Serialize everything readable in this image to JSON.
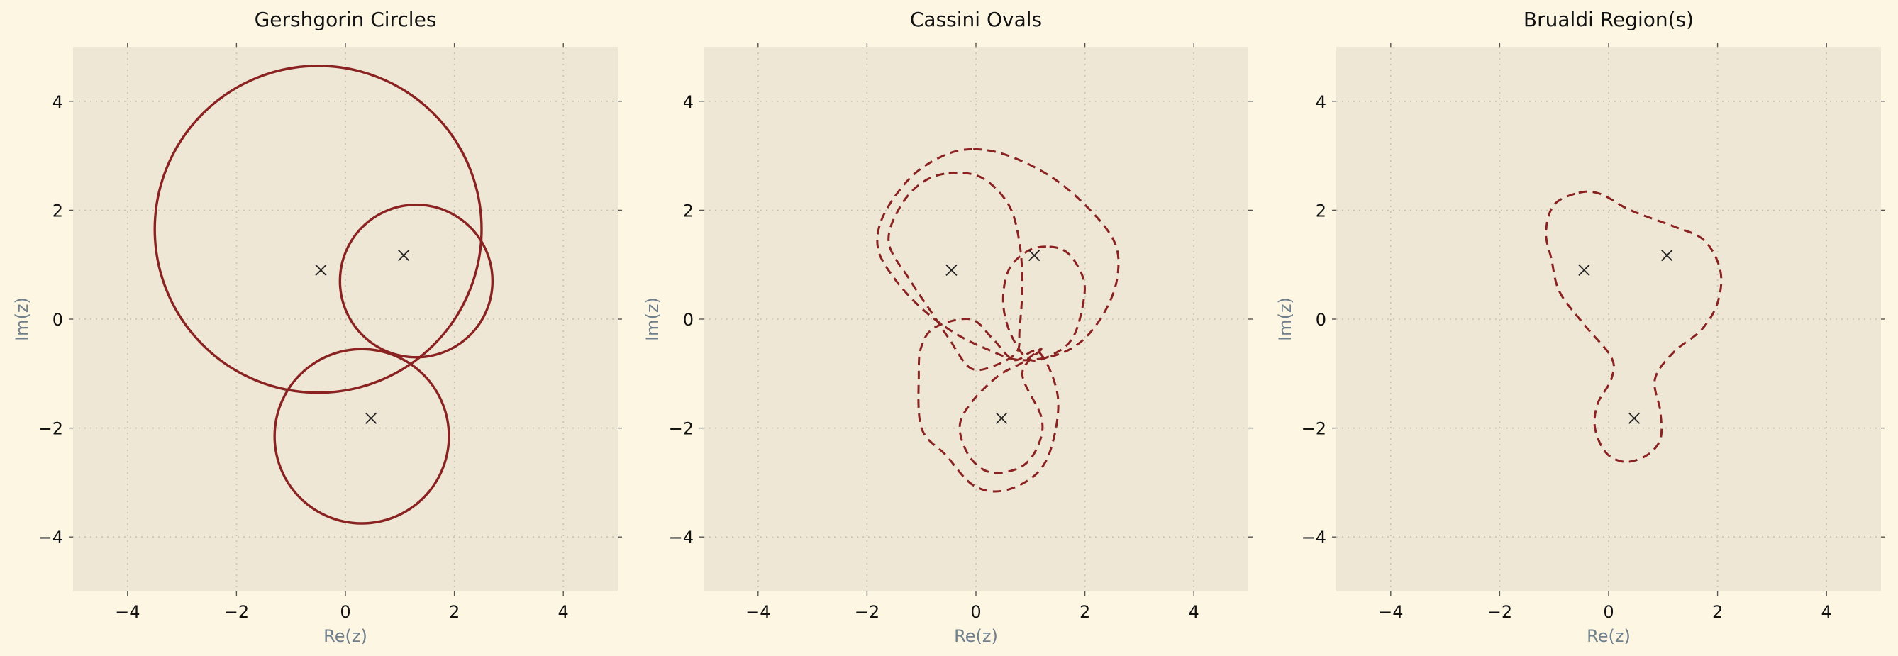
{
  "colors": {
    "figure_background": "#fdf6e3",
    "plot_background": "#eee7d5",
    "curve": "#8b2222",
    "eigenvalue_marker": "#222222",
    "grid": "#c9c2b0",
    "axis_label": "#6f7f8c"
  },
  "chart_data": [
    {
      "type": "line",
      "title": "Gershgorin Circles",
      "xlabel": "Re(z)",
      "ylabel": "Im(z)",
      "xlim": [
        -5,
        5
      ],
      "ylim": [
        -5,
        5
      ],
      "grid": true,
      "line_style": "solid",
      "eigenvalues": [
        {
          "re": -0.45,
          "im": 0.9
        },
        {
          "re": 1.07,
          "im": 1.17
        },
        {
          "re": 0.47,
          "im": -1.82
        }
      ],
      "circles": [
        {
          "center": [
            -0.5,
            1.65
          ],
          "radius": 3.0
        },
        {
          "center": [
            1.3,
            0.7
          ],
          "radius": 1.4
        },
        {
          "center": [
            0.3,
            -2.15
          ],
          "radius": 1.6
        }
      ]
    },
    {
      "type": "line",
      "title": "Cassini Ovals",
      "xlabel": "Re(z)",
      "ylabel": "Im(z)",
      "xlim": [
        -5,
        5
      ],
      "ylim": [
        -5,
        5
      ],
      "grid": true,
      "line_style": "dashed",
      "eigenvalues": [
        {
          "re": -0.45,
          "im": 0.9
        },
        {
          "re": 1.07,
          "im": 1.17
        },
        {
          "re": 0.47,
          "im": -1.82
        }
      ],
      "curves": [
        [
          [
            -0.05,
            3.12
          ],
          [
            0.6,
            3.0
          ],
          [
            1.4,
            2.6
          ],
          [
            2.1,
            2.0
          ],
          [
            2.55,
            1.4
          ],
          [
            2.6,
            0.8
          ],
          [
            2.4,
            0.2
          ],
          [
            2.0,
            -0.35
          ],
          [
            1.5,
            -0.65
          ],
          [
            0.8,
            -0.75
          ],
          [
            0.2,
            -0.55
          ],
          [
            -0.4,
            -0.25
          ],
          [
            -1.0,
            0.2
          ],
          [
            -1.5,
            0.75
          ],
          [
            -1.8,
            1.3
          ],
          [
            -1.7,
            1.9
          ],
          [
            -1.2,
            2.6
          ],
          [
            -0.6,
            3.0
          ],
          [
            -0.05,
            3.12
          ]
        ],
        [
          [
            -0.5,
            2.68
          ],
          [
            0.1,
            2.6
          ],
          [
            0.6,
            2.1
          ],
          [
            0.8,
            1.4
          ],
          [
            0.85,
            0.6
          ],
          [
            0.8,
            -0.2
          ],
          [
            0.75,
            -0.6
          ],
          [
            0.35,
            -0.85
          ],
          [
            -0.1,
            -0.9
          ],
          [
            -0.5,
            -0.35
          ],
          [
            -0.8,
            0.1
          ],
          [
            -1.2,
            0.7
          ],
          [
            -1.6,
            1.4
          ],
          [
            -1.4,
            2.05
          ],
          [
            -1.0,
            2.5
          ],
          [
            -0.5,
            2.68
          ]
        ],
        [
          [
            1.35,
            1.33
          ],
          [
            1.7,
            1.2
          ],
          [
            1.97,
            0.75
          ],
          [
            1.97,
            0.3
          ],
          [
            1.8,
            -0.3
          ],
          [
            1.5,
            -0.6
          ],
          [
            1.0,
            -0.75
          ],
          [
            0.65,
            -0.3
          ],
          [
            0.5,
            0.3
          ],
          [
            0.6,
            0.9
          ],
          [
            0.95,
            1.25
          ],
          [
            1.35,
            1.33
          ]
        ],
        [
          [
            0.7,
            -0.75
          ],
          [
            1.15,
            -0.6
          ],
          [
            1.5,
            -1.4
          ],
          [
            1.4,
            -2.3
          ],
          [
            1.1,
            -2.85
          ],
          [
            0.5,
            -3.15
          ],
          [
            -0.05,
            -3.05
          ],
          [
            -0.55,
            -2.5
          ],
          [
            -1.0,
            -2.0
          ],
          [
            -1.05,
            -1.0
          ],
          [
            -1.0,
            -0.5
          ],
          [
            -0.75,
            -0.15
          ],
          [
            -0.1,
            0.0
          ],
          [
            0.3,
            -0.35
          ],
          [
            0.7,
            -0.75
          ]
        ],
        [
          [
            1.2,
            -0.55
          ],
          [
            0.85,
            -1.0
          ],
          [
            1.2,
            -1.8
          ],
          [
            1.15,
            -2.3
          ],
          [
            0.85,
            -2.7
          ],
          [
            0.3,
            -2.82
          ],
          [
            -0.1,
            -2.55
          ],
          [
            -0.3,
            -2.0
          ],
          [
            -0.1,
            -1.55
          ],
          [
            0.4,
            -1.05
          ],
          [
            0.85,
            -0.8
          ],
          [
            1.2,
            -0.55
          ]
        ]
      ]
    },
    {
      "type": "line",
      "title": "Brualdi Region(s)",
      "xlabel": "Re(z)",
      "ylabel": "Im(z)",
      "xlim": [
        -5,
        5
      ],
      "ylim": [
        -5,
        5
      ],
      "grid": true,
      "line_style": "dashed",
      "eigenvalues": [
        {
          "re": -0.45,
          "im": 0.9
        },
        {
          "re": 1.07,
          "im": 1.17
        },
        {
          "re": 0.47,
          "im": -1.82
        }
      ],
      "curves": [
        [
          [
            -0.55,
            2.32
          ],
          [
            -0.15,
            2.3
          ],
          [
            0.4,
            2.0
          ],
          [
            1.2,
            1.7
          ],
          [
            1.75,
            1.45
          ],
          [
            2.05,
            0.9
          ],
          [
            2.0,
            0.3
          ],
          [
            1.7,
            -0.2
          ],
          [
            1.2,
            -0.6
          ],
          [
            0.85,
            -1.1
          ],
          [
            0.95,
            -1.7
          ],
          [
            0.95,
            -2.2
          ],
          [
            0.7,
            -2.5
          ],
          [
            0.3,
            -2.62
          ],
          [
            -0.05,
            -2.45
          ],
          [
            -0.25,
            -2.0
          ],
          [
            -0.2,
            -1.55
          ],
          [
            0.05,
            -1.1
          ],
          [
            0.05,
            -0.7
          ],
          [
            -0.45,
            -0.1
          ],
          [
            -0.9,
            0.5
          ],
          [
            -1.05,
            1.1
          ],
          [
            -1.15,
            1.6
          ],
          [
            -1.0,
            2.1
          ],
          [
            -0.55,
            2.32
          ]
        ]
      ]
    }
  ]
}
